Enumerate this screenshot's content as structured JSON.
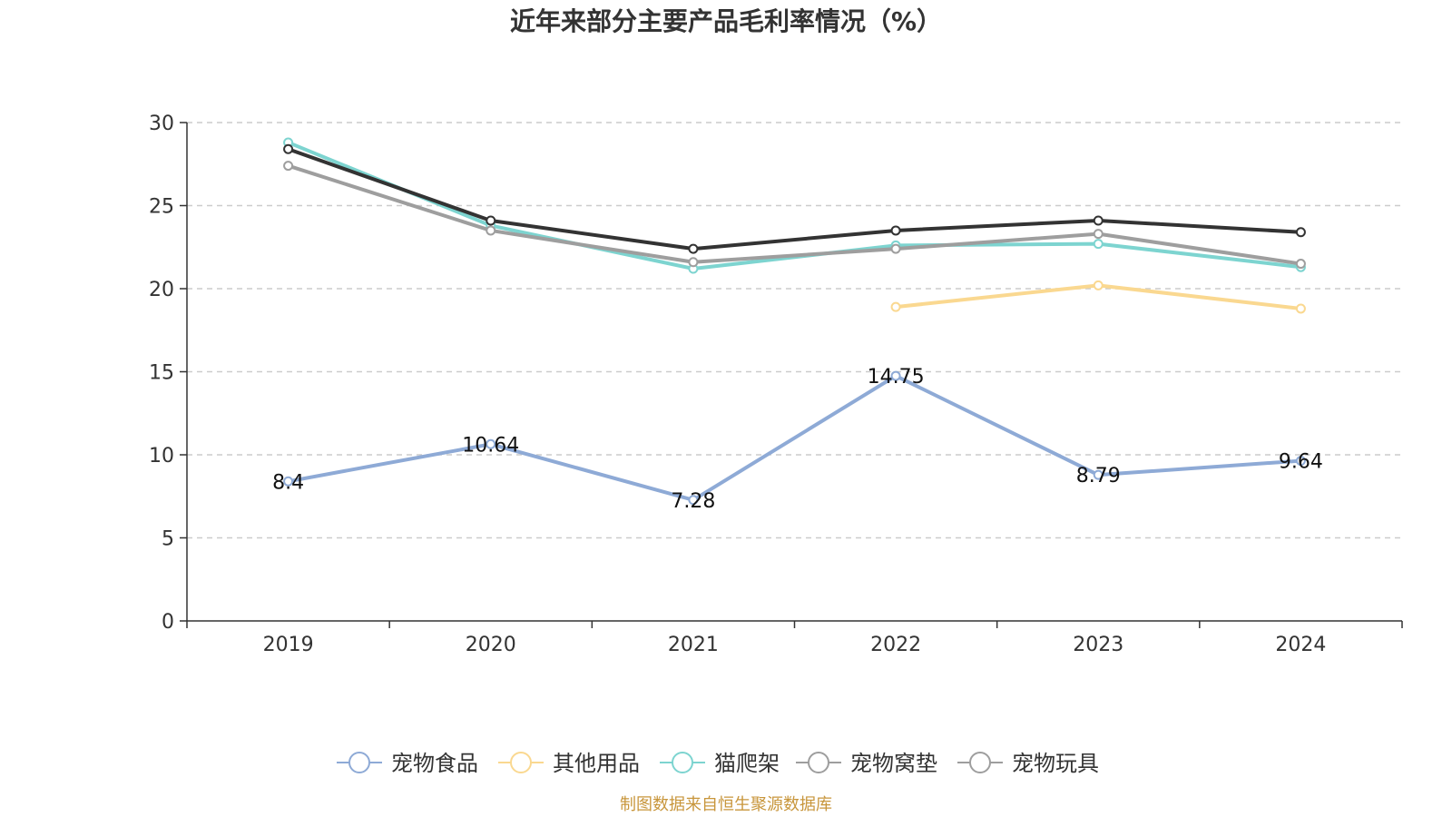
{
  "chart_data": {
    "type": "line",
    "title": "近年来部分主要产品毛利率情况（%）",
    "categories": [
      "2019",
      "2020",
      "2021",
      "2022",
      "2023",
      "2024"
    ],
    "ylim": [
      0,
      30
    ],
    "yticks": [
      0,
      5,
      10,
      15,
      20,
      25,
      30
    ],
    "grid": true,
    "legend_position": "bottom",
    "series": [
      {
        "name": "宠物食品",
        "color": "#8eaad6",
        "values": [
          8.4,
          10.64,
          7.28,
          14.75,
          8.79,
          9.64
        ],
        "labels": [
          "8.4",
          "10.64",
          "7.28",
          "14.75",
          "8.79",
          "9.64"
        ],
        "show_labels": true
      },
      {
        "name": "其他用品",
        "color": "#fad890",
        "values": [
          null,
          null,
          null,
          18.9,
          20.2,
          18.8
        ],
        "show_labels": false
      },
      {
        "name": "猫爬架",
        "color": "#7dd4d0",
        "values": [
          28.8,
          23.8,
          21.2,
          22.6,
          22.7,
          21.3
        ],
        "show_labels": false
      },
      {
        "name": "宠物窝垫",
        "color": "#9e9e9e",
        "values": [
          27.4,
          23.5,
          21.6,
          22.4,
          23.3,
          21.5
        ],
        "show_labels": false
      },
      {
        "name": "宠物玩具",
        "color": "#333333",
        "values": [
          28.4,
          24.1,
          22.4,
          23.5,
          24.1,
          23.4
        ],
        "show_labels": false
      }
    ],
    "legend_items": [
      {
        "name": "宠物食品",
        "color": "#8eaad6"
      },
      {
        "name": "其他用品",
        "color": "#fad890"
      },
      {
        "name": "猫爬架",
        "color": "#7dd4d0"
      },
      {
        "name": "宠物窝垫",
        "color": "#9e9e9e"
      },
      {
        "name": "宠物玩具",
        "color": "#9e9e9e"
      }
    ],
    "source": "制图数据来自恒生聚源数据库",
    "source_color": "#c8963c"
  }
}
